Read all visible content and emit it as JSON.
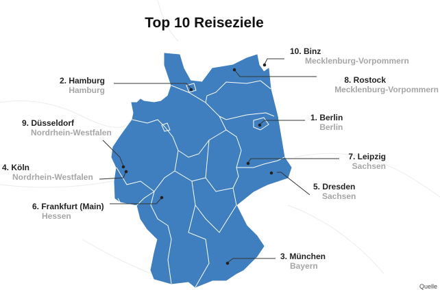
{
  "title": "Top 10 Reiseziele",
  "source_label": "Quelle",
  "colors": {
    "land": "#3f7fbf",
    "border": "#ffffff",
    "label": "#222222",
    "sublabel": "#a6a6a6",
    "background_map": "#f2f2f2"
  },
  "destinations": [
    {
      "rank_label": "1. Berlin",
      "state": "Berlin"
    },
    {
      "rank_label": "2. Hamburg",
      "state": "Hamburg"
    },
    {
      "rank_label": "3. München",
      "state": "Bayern"
    },
    {
      "rank_label": "4. Köln",
      "state": "Nordrhein-Westfalen"
    },
    {
      "rank_label": "5. Dresden",
      "state": "Sachsen"
    },
    {
      "rank_label": "6. Frankfurt (Main)",
      "state": "Hessen"
    },
    {
      "rank_label": "7. Leipzig",
      "state": "Sachsen"
    },
    {
      "rank_label": "8. Rostock",
      "state": "Mecklenburg-Vorpommern"
    },
    {
      "rank_label": "9. Düsseldorf",
      "state": "Nordrhein-Westfalen"
    },
    {
      "rank_label": "10. Binz",
      "state": "Mecklenburg-Vorpommern"
    }
  ]
}
